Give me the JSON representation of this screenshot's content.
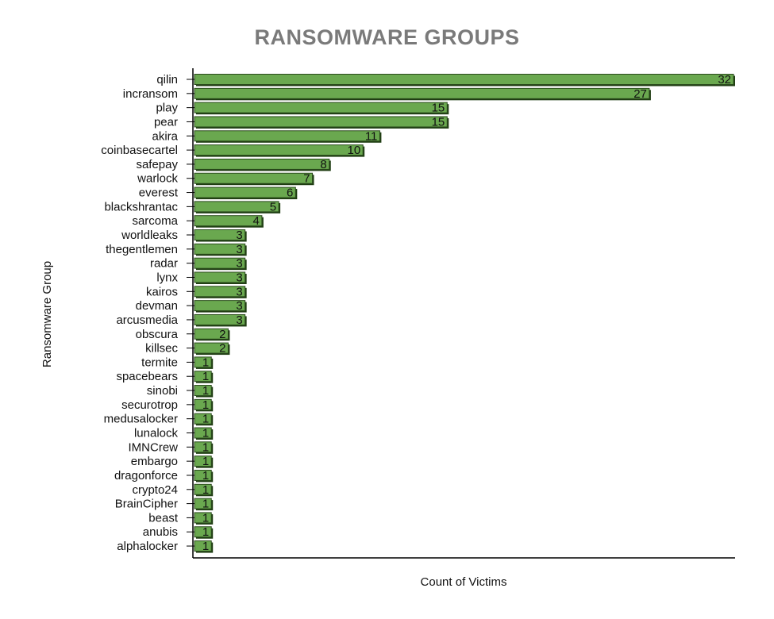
{
  "chart_data": {
    "type": "bar",
    "orientation": "horizontal",
    "title": "RANSOMWARE GROUPS",
    "xlabel": "Count of Victims",
    "ylabel": "Ransomware Group",
    "categories": [
      "qilin",
      "incransom",
      "play",
      "pear",
      "akira",
      "coinbasecartel",
      "safepay",
      "warlock",
      "everest",
      "blackshrantac",
      "sarcoma",
      "worldleaks",
      "thegentlemen",
      "radar",
      "lynx",
      "kairos",
      "devman",
      "arcusmedia",
      "obscura",
      "killsec",
      "termite",
      "spacebears",
      "sinobi",
      "securotrop",
      "medusalocker",
      "lunalock",
      "IMNCrew",
      "embargo",
      "dragonforce",
      "crypto24",
      "BrainCipher",
      "beast",
      "anubis",
      "alphalocker"
    ],
    "values": [
      32,
      27,
      15,
      15,
      11,
      10,
      8,
      7,
      6,
      5,
      4,
      3,
      3,
      3,
      3,
      3,
      3,
      3,
      2,
      2,
      1,
      1,
      1,
      1,
      1,
      1,
      1,
      1,
      1,
      1,
      1,
      1,
      1,
      1
    ],
    "xlim": [
      0,
      32
    ],
    "bar_color": "#6aa84f",
    "bar_shadow_color": "#1f3d12",
    "title_color": "#7a7a7a",
    "grid": false,
    "data_labels": true,
    "x_tick_labels_shown": false
  }
}
